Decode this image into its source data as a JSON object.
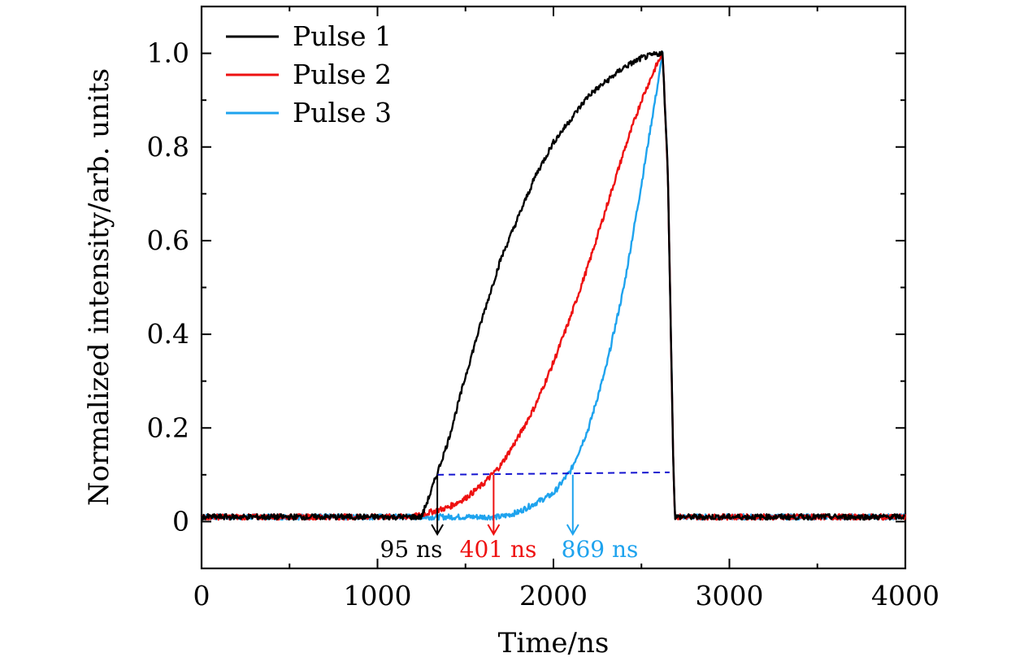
{
  "chart_data": {
    "type": "line",
    "title": "",
    "xlabel": "Time/ns",
    "ylabel": "Normalized intensity/arb. units",
    "xlim": [
      0,
      4000
    ],
    "ylim": [
      -0.1,
      1.1
    ],
    "x_ticks": [
      0,
      1000,
      2000,
      3000,
      4000
    ],
    "x_tick_labels": [
      "0",
      "1000",
      "2000",
      "3000",
      "4000"
    ],
    "y_ticks": [
      0,
      0.2,
      0.4,
      0.6,
      0.8,
      1.0
    ],
    "y_tick_labels": [
      "0",
      "0.2",
      "0.4",
      "0.6",
      "0.8",
      "1.0"
    ],
    "grid": false,
    "legend_position": "top-left",
    "series": [
      {
        "name": "Pulse 1",
        "color": "#000000",
        "x": [
          0,
          1250,
          1270,
          1300,
          1400,
          1500,
          1600,
          1700,
          1800,
          1900,
          2000,
          2100,
          2200,
          2300,
          2400,
          2500,
          2600,
          2620,
          2650,
          2680,
          2690,
          4000
        ],
        "y": [
          0.01,
          0.01,
          0.03,
          0.06,
          0.17,
          0.31,
          0.44,
          0.56,
          0.65,
          0.74,
          0.81,
          0.86,
          0.91,
          0.94,
          0.97,
          0.99,
          1.0,
          1.0,
          0.75,
          0.15,
          0.01,
          0.01
        ]
      },
      {
        "name": "Pulse 2",
        "color": "#ee1111",
        "x": [
          0,
          1200,
          1300,
          1400,
          1500,
          1600,
          1700,
          1800,
          1900,
          2000,
          2100,
          2200,
          2300,
          2400,
          2500,
          2580,
          2620,
          2650,
          2680,
          2690,
          4000
        ],
        "y": [
          0.01,
          0.01,
          0.02,
          0.03,
          0.05,
          0.08,
          0.12,
          0.18,
          0.25,
          0.34,
          0.44,
          0.55,
          0.67,
          0.79,
          0.9,
          0.97,
          1.0,
          0.75,
          0.15,
          0.01,
          0.01
        ]
      },
      {
        "name": "Pulse 3",
        "color": "#1ea3ee",
        "x": [
          0,
          1700,
          1800,
          1900,
          2000,
          2100,
          2200,
          2300,
          2400,
          2500,
          2560,
          2600,
          2620,
          2650,
          2680,
          2690,
          4000
        ],
        "y": [
          0.01,
          0.01,
          0.02,
          0.04,
          0.06,
          0.11,
          0.2,
          0.33,
          0.5,
          0.72,
          0.86,
          0.95,
          1.0,
          0.75,
          0.15,
          0.01,
          0.01
        ]
      }
    ],
    "threshold_line": {
      "y": 0.1,
      "x_range": [
        1340,
        2660
      ],
      "color": "#1515d0"
    },
    "annotations": [
      {
        "text": "95 ns",
        "arrow_x": 1340,
        "color": "#000000"
      },
      {
        "text": "401 ns",
        "arrow_x": 1660,
        "color": "#ee1111"
      },
      {
        "text": "869 ns",
        "arrow_x": 2110,
        "color": "#1ea3ee"
      }
    ]
  }
}
